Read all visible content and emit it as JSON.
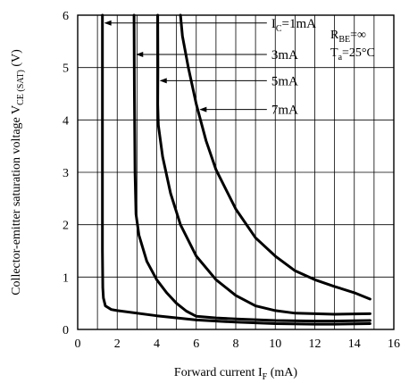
{
  "chart_data": {
    "type": "line",
    "xlabel_main": "Forward current  I",
    "xlabel_sub": "F",
    "xlabel_unit": " (mA)",
    "ylabel_main": "Collector-emitter saturation voltage  V",
    "ylabel_sub": "CE (SAT)",
    "ylabel_unit": " (V)",
    "xlim": [
      0,
      16
    ],
    "ylim": [
      0,
      6
    ],
    "x_ticks": [
      0,
      2,
      4,
      6,
      8,
      10,
      12,
      14,
      16
    ],
    "y_ticks": [
      0,
      1,
      2,
      3,
      4,
      5,
      6
    ],
    "x_minor_step": 1,
    "grid": true,
    "conditions": {
      "rbe_main": "R",
      "rbe_sub": "BE",
      "rbe_value": "=∞",
      "ta_main": "T",
      "ta_sub": "a",
      "ta_value": "=25°C"
    },
    "series": [
      {
        "label_main": "I",
        "label_sub": "C",
        "label_value": "=1mA",
        "label_y": 5.85,
        "points": [
          [
            1.25,
            6.0
          ],
          [
            1.25,
            4.0
          ],
          [
            1.25,
            1.5
          ],
          [
            1.27,
            0.8
          ],
          [
            1.3,
            0.6
          ],
          [
            1.4,
            0.45
          ],
          [
            1.7,
            0.38
          ],
          [
            2,
            0.36
          ],
          [
            4,
            0.26
          ],
          [
            6,
            0.18
          ],
          [
            8,
            0.14
          ],
          [
            10,
            0.11
          ],
          [
            12,
            0.1
          ],
          [
            13,
            0.1
          ],
          [
            14.8,
            0.11
          ]
        ]
      },
      {
        "label_main": "",
        "label_sub": "",
        "label_value": "3mA",
        "label_y": 5.25,
        "points": [
          [
            2.85,
            6.0
          ],
          [
            2.87,
            4.5
          ],
          [
            2.9,
            3.0
          ],
          [
            2.95,
            2.2
          ],
          [
            3.1,
            1.8
          ],
          [
            3.5,
            1.3
          ],
          [
            4,
            0.95
          ],
          [
            4.5,
            0.7
          ],
          [
            5,
            0.5
          ],
          [
            5.5,
            0.35
          ],
          [
            6,
            0.25
          ],
          [
            7,
            0.22
          ],
          [
            8,
            0.2
          ],
          [
            10,
            0.17
          ],
          [
            12,
            0.16
          ],
          [
            13,
            0.16
          ],
          [
            14.8,
            0.17
          ]
        ]
      },
      {
        "label_main": "",
        "label_sub": "",
        "label_value": "5mA",
        "label_y": 4.75,
        "points": [
          [
            4.05,
            6.0
          ],
          [
            4.06,
            5.0
          ],
          [
            4.05,
            4.3
          ],
          [
            4.08,
            3.9
          ],
          [
            4.3,
            3.3
          ],
          [
            4.7,
            2.6
          ],
          [
            5.2,
            2.0
          ],
          [
            6,
            1.4
          ],
          [
            7,
            0.95
          ],
          [
            8,
            0.65
          ],
          [
            9,
            0.45
          ],
          [
            10,
            0.36
          ],
          [
            11,
            0.31
          ],
          [
            12,
            0.3
          ],
          [
            13,
            0.29
          ],
          [
            14.8,
            0.3
          ]
        ]
      },
      {
        "label_main": "",
        "label_sub": "",
        "label_value": "7mA",
        "label_y": 4.2,
        "points": [
          [
            5.2,
            6.0
          ],
          [
            5.3,
            5.6
          ],
          [
            5.6,
            5.0
          ],
          [
            6,
            4.3
          ],
          [
            6.5,
            3.6
          ],
          [
            7,
            3.05
          ],
          [
            8,
            2.3
          ],
          [
            9,
            1.75
          ],
          [
            10,
            1.4
          ],
          [
            11,
            1.12
          ],
          [
            12,
            0.95
          ],
          [
            13,
            0.82
          ],
          [
            14,
            0.7
          ],
          [
            14.8,
            0.58
          ]
        ]
      }
    ]
  }
}
